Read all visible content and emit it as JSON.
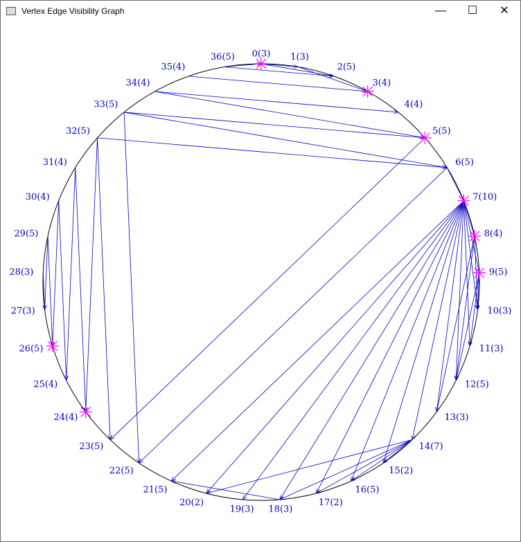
{
  "window": {
    "title": "Vertex Edge Visibility Graph"
  },
  "nodes": [
    {
      "label": "0(3)",
      "highlighted": true
    },
    {
      "label": "1(3)",
      "highlighted": false
    },
    {
      "label": "2(5)",
      "highlighted": false
    },
    {
      "label": "3(4)",
      "highlighted": true
    },
    {
      "label": "4(4)",
      "highlighted": false
    },
    {
      "label": "5(5)",
      "highlighted": true
    },
    {
      "label": "6(5)",
      "highlighted": false
    },
    {
      "label": "7(10)",
      "highlighted": true
    },
    {
      "label": "8(4)",
      "highlighted": true
    },
    {
      "label": "9(5)",
      "highlighted": true
    },
    {
      "label": "10(3)",
      "highlighted": false
    },
    {
      "label": "11(3)",
      "highlighted": false
    },
    {
      "label": "12(5)",
      "highlighted": false
    },
    {
      "label": "13(3)",
      "highlighted": false
    },
    {
      "label": "14(7)",
      "highlighted": false
    },
    {
      "label": "15(2)",
      "highlighted": false
    },
    {
      "label": "16(5)",
      "highlighted": false
    },
    {
      "label": "17(2)",
      "highlighted": false
    },
    {
      "label": "18(3)",
      "highlighted": false
    },
    {
      "label": "19(3)",
      "highlighted": false
    },
    {
      "label": "20(2)",
      "highlighted": false
    },
    {
      "label": "21(5)",
      "highlighted": false
    },
    {
      "label": "22(5)",
      "highlighted": false
    },
    {
      "label": "23(5)",
      "highlighted": false
    },
    {
      "label": "24(4)",
      "highlighted": true
    },
    {
      "label": "25(4)",
      "highlighted": false
    },
    {
      "label": "26(5)",
      "highlighted": true
    },
    {
      "label": "27(3)",
      "highlighted": false
    },
    {
      "label": "28(3)",
      "highlighted": false
    },
    {
      "label": "29(5)",
      "highlighted": false
    },
    {
      "label": "30(4)",
      "highlighted": false
    },
    {
      "label": "31(4)",
      "highlighted": false
    },
    {
      "label": "32(5)",
      "highlighted": false
    },
    {
      "label": "33(5)",
      "highlighted": false
    },
    {
      "label": "34(4)",
      "highlighted": false
    },
    {
      "label": "35(4)",
      "highlighted": false
    },
    {
      "label": "36(5)",
      "highlighted": false
    }
  ],
  "edges": [
    [
      0,
      1
    ],
    [
      36,
      0
    ],
    [
      0,
      2
    ],
    [
      36,
      2
    ],
    [
      35,
      3
    ],
    [
      34,
      4
    ],
    [
      1,
      3
    ],
    [
      33,
      5
    ],
    [
      32,
      6
    ],
    [
      34,
      5
    ],
    [
      33,
      6
    ],
    [
      32,
      23
    ],
    [
      33,
      22
    ],
    [
      31,
      24
    ],
    [
      30,
      25
    ],
    [
      29,
      26
    ],
    [
      28,
      27
    ],
    [
      29,
      27
    ],
    [
      30,
      26
    ],
    [
      31,
      25
    ],
    [
      32,
      24
    ],
    [
      5,
      23
    ],
    [
      6,
      22
    ],
    [
      7,
      21
    ],
    [
      7,
      20
    ],
    [
      7,
      19
    ],
    [
      7,
      18
    ],
    [
      7,
      17
    ],
    [
      7,
      16
    ],
    [
      7,
      15
    ],
    [
      7,
      14
    ],
    [
      7,
      13
    ],
    [
      7,
      12
    ],
    [
      7,
      11
    ],
    [
      7,
      10
    ],
    [
      7,
      9
    ],
    [
      7,
      8
    ],
    [
      8,
      13
    ],
    [
      9,
      12
    ],
    [
      9,
      11
    ],
    [
      8,
      10
    ],
    [
      14,
      18
    ],
    [
      14,
      17
    ],
    [
      14,
      16
    ],
    [
      14,
      15
    ],
    [
      14,
      20
    ],
    [
      18,
      21
    ],
    [
      6,
      7
    ],
    [
      9,
      10
    ],
    [
      8,
      12
    ]
  ]
}
